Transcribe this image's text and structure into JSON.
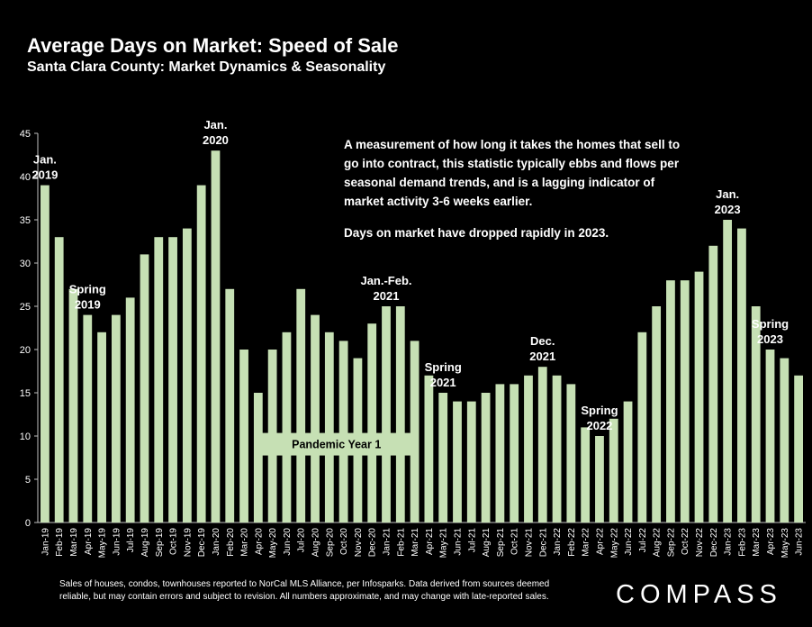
{
  "title": "Average Days on Market: Speed of Sale",
  "subtitle": "Santa Clara County: Market Dynamics & Seasonality",
  "note": {
    "p1": "A measurement of how long it takes the homes that sell to go into contract, this statistic typically ebbs and flows per seasonal demand trends, and is a lagging indicator of market activity 3-6 weeks earlier.",
    "p2": "Days on market have dropped rapidly in 2023."
  },
  "footer": "Sales of houses, condos, townhouses reported to NorCal MLS Alliance, per Infosparks. Data derived from sources deemed reliable, but may contain errors and subject to revision. All numbers approximate, and may change with late-reported sales.",
  "logo": "COMPASS",
  "colors": {
    "background": "#000000",
    "bar": "#c6e0b4",
    "text": "#ffffff",
    "axis": "#bfbfbf",
    "callout_fill": "#c6e0b4",
    "callout_text": "#000000"
  },
  "chart_data": {
    "type": "bar",
    "title": "Average Days on Market: Speed of Sale",
    "subtitle": "Santa Clara County: Market Dynamics & Seasonality",
    "xlabel": "",
    "ylabel": "",
    "ylim": [
      0,
      45
    ],
    "yticks": [
      0,
      5,
      10,
      15,
      20,
      25,
      30,
      35,
      40,
      45
    ],
    "grid": false,
    "categories": [
      "Jan-19",
      "Feb-19",
      "Mar-19",
      "Apr-19",
      "May-19",
      "Jun-19",
      "Jul-19",
      "Aug-19",
      "Sep-19",
      "Oct-19",
      "Nov-19",
      "Dec-19",
      "Jan-20",
      "Feb-20",
      "Mar-20",
      "Apr-20",
      "May-20",
      "Jun-20",
      "Jul-20",
      "Aug-20",
      "Sep-20",
      "Oct-20",
      "Nov-20",
      "Dec-20",
      "Jan-21",
      "Feb-21",
      "Mar-21",
      "Apr-21",
      "May-21",
      "Jun-21",
      "Jul-21",
      "Aug-21",
      "Sep-21",
      "Oct-21",
      "Nov-21",
      "Dec-21",
      "Jan-22",
      "Feb-22",
      "Mar-22",
      "Apr-22",
      "May-22",
      "Jun-22",
      "Jul-22",
      "Aug-22",
      "Sep-22",
      "Oct-22",
      "Nov-22",
      "Dec-22",
      "Jan-23",
      "Feb-23",
      "Mar-23",
      "Apr-23",
      "May-23",
      "Jun-23"
    ],
    "values": [
      39,
      33,
      27,
      24,
      22,
      24,
      26,
      31,
      33,
      33,
      34,
      39,
      43,
      27,
      20,
      15,
      20,
      22,
      27,
      24,
      22,
      21,
      19,
      23,
      25,
      25,
      21,
      17,
      15,
      14,
      14,
      15,
      16,
      16,
      17,
      18,
      17,
      16,
      11,
      10,
      12,
      14,
      22,
      25,
      28,
      28,
      29,
      32,
      35,
      34,
      25,
      20,
      19,
      17
    ],
    "annotations": [
      {
        "lines": [
          "Jan.",
          "2019"
        ],
        "category": "Jan-19"
      },
      {
        "lines": [
          "Spring",
          "2019"
        ],
        "category": "Apr-19"
      },
      {
        "lines": [
          "Jan.",
          "2020"
        ],
        "category": "Jan-20"
      },
      {
        "lines": [
          "Jan.-Feb.",
          "2021"
        ],
        "category": "Jan-21"
      },
      {
        "lines": [
          "Spring",
          "2021"
        ],
        "category": "May-21"
      },
      {
        "lines": [
          "Dec.",
          "2021"
        ],
        "category": "Dec-21"
      },
      {
        "lines": [
          "Spring",
          "2022"
        ],
        "category": "Apr-22"
      },
      {
        "lines": [
          "Jan.",
          "2023"
        ],
        "category": "Jan-23"
      },
      {
        "lines": [
          "Spring",
          "2023"
        ],
        "category": "Apr-23"
      }
    ],
    "callout": {
      "text": "Pandemic Year 1",
      "from": "Apr-20",
      "to": "Mar-21",
      "y": 9
    }
  }
}
